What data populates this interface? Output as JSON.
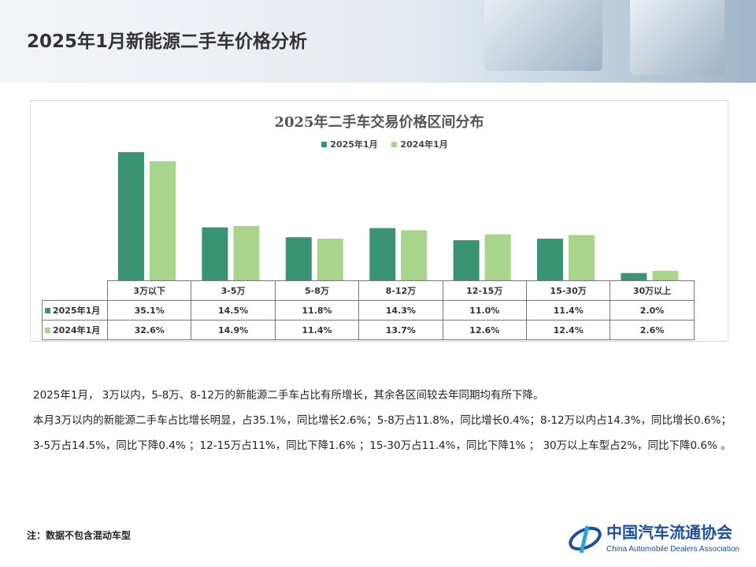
{
  "page": {
    "title": "2025年1月新能源二手车价格分析"
  },
  "chart_data": {
    "type": "bar",
    "title": "2025年二手车交易价格区间分布",
    "categories": [
      "3万以下",
      "3-5万",
      "5-8万",
      "8-12万",
      "12-15万",
      "15-30万",
      "30万以上"
    ],
    "series": [
      {
        "name": "2025年1月",
        "color": "#3a9474",
        "values": [
          35.1,
          14.5,
          11.8,
          14.3,
          11.0,
          11.4,
          2.0
        ],
        "labels": [
          "35.1%",
          "14.5%",
          "11.8%",
          "14.3%",
          "11.0%",
          "11.4%",
          "2.0%"
        ]
      },
      {
        "name": "2024年1月",
        "color": "#a8d48c",
        "values": [
          32.6,
          14.9,
          11.4,
          13.7,
          12.6,
          12.4,
          2.6
        ],
        "labels": [
          "32.6%",
          "14.9%",
          "11.4%",
          "13.7%",
          "12.6%",
          "12.4%",
          "2.6%"
        ]
      }
    ],
    "legend": "top",
    "grid": false,
    "ylim": [
      0,
      36
    ]
  },
  "notes": [
    "2025年1月， 3万以内，5-8万、8-12万的新能源二手车占比有所增长，其余各区间较去年同期均有所下降。",
    "本月3万以内的新能源二手车占比增长明显，占35.1%，同比增长2.6%；5-8万占11.8%，同比增长0.4%；8-12万以内占14.3%，同比增长0.6%；3-5万占14.5%，同比下降0.4% ；12-15万占11%，同比下降1.6% ；15-30万占11.4%，同比下降1% ； 30万以上车型占2%，同比下降0.6% 。"
  ],
  "footnote": "注：数据不包含混动车型",
  "logo": {
    "cn": "中国汽车流通协会",
    "en": "China Automobile Dealers Association",
    "mark": "CADA"
  }
}
